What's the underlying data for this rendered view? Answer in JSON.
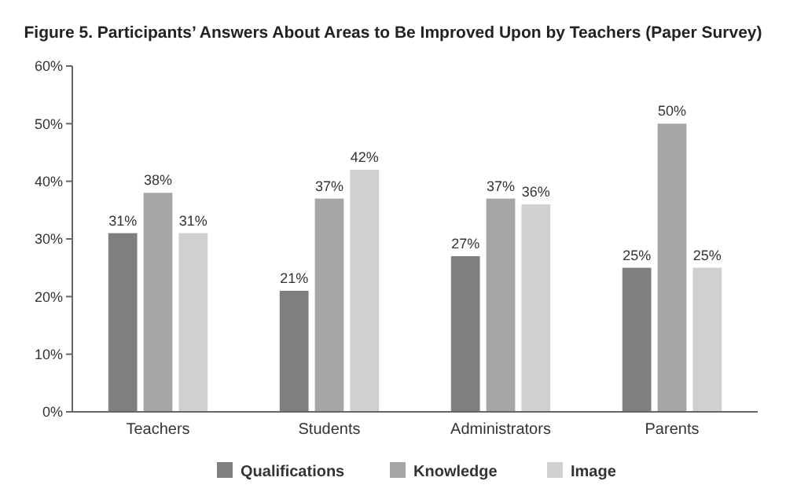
{
  "chart_data": {
    "type": "bar",
    "title": "Figure 5. Participants’ Answers About Areas to Be Improved Upon by Teachers (Paper Survey)",
    "categories": [
      "Teachers",
      "Students",
      "Administrators",
      "Parents"
    ],
    "series": [
      {
        "name": "Qualifications",
        "color": "#7f7f7f",
        "values": [
          31,
          21,
          27,
          25
        ],
        "value_labels": [
          "31%",
          "21%",
          "27%",
          "25%"
        ]
      },
      {
        "name": "Knowledge",
        "color": "#a6a6a6",
        "values": [
          38,
          37,
          37,
          50
        ],
        "value_labels": [
          "38%",
          "37%",
          "37%",
          "50%"
        ]
      },
      {
        "name": "Image",
        "color": "#d0d0d0",
        "values": [
          31,
          42,
          36,
          25
        ],
        "value_labels": [
          "31%",
          "42%",
          "36%",
          "25%"
        ]
      }
    ],
    "ylim": [
      0,
      60
    ],
    "yticks": [
      {
        "value": 0,
        "label": "0%"
      },
      {
        "value": 10,
        "label": "10%"
      },
      {
        "value": 20,
        "label": "20%"
      },
      {
        "value": 30,
        "label": "30%"
      },
      {
        "value": 40,
        "label": "40%"
      },
      {
        "value": 50,
        "label": "50%"
      },
      {
        "value": 60,
        "label": "60%"
      }
    ],
    "legend": "bottom"
  }
}
